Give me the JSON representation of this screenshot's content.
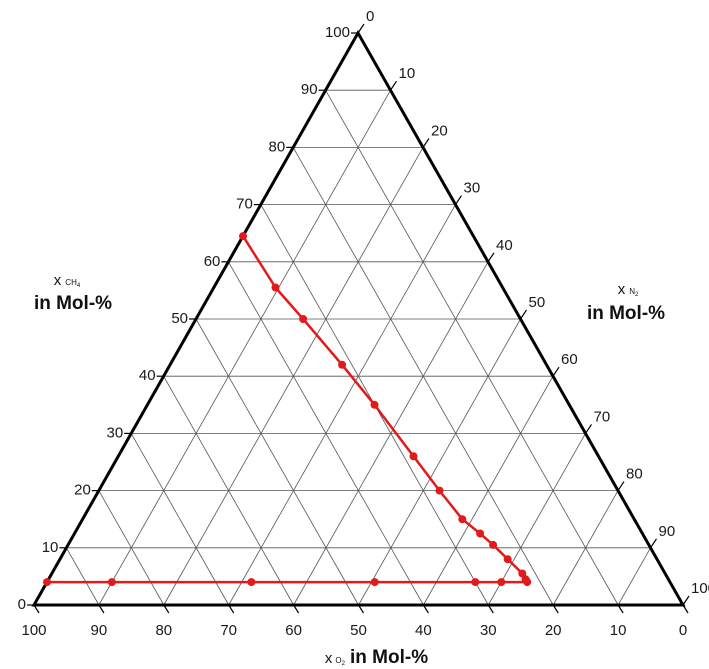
{
  "chart_data": {
    "type": "scatter",
    "subtype": "ternary",
    "axes": {
      "left": {
        "symbol": "x",
        "species": "CH",
        "sub": "4",
        "label": "in Mol-%"
      },
      "right": {
        "symbol": "x",
        "species": "N",
        "sub": "2",
        "label": "in Mol-%"
      },
      "bottom": {
        "symbol": "x",
        "species": "O",
        "sub": "2",
        "label": "in Mol-%"
      }
    },
    "ticks": {
      "left": [
        "0",
        "10",
        "20",
        "30",
        "40",
        "50",
        "60",
        "70",
        "80",
        "90",
        "100"
      ],
      "right": [
        "0",
        "10",
        "20",
        "30",
        "40",
        "50",
        "60",
        "70",
        "80",
        "90",
        "100"
      ],
      "bottom": [
        "100",
        "90",
        "80",
        "70",
        "60",
        "50",
        "40",
        "30",
        "20",
        "10",
        "0"
      ]
    },
    "grid": true,
    "series": [
      {
        "color": "#e31a1c",
        "points": [
          {
            "ch4": 64.5,
            "o2": 35.5,
            "n2": 0
          },
          {
            "ch4": 55.5,
            "o2": 35.0,
            "n2": 9.5
          },
          {
            "ch4": 50,
            "o2": 33.5,
            "n2": 16.5
          },
          {
            "ch4": 42,
            "o2": 31.5,
            "n2": 26.5
          },
          {
            "ch4": 35,
            "o2": 30.0,
            "n2": 35
          },
          {
            "ch4": 26,
            "o2": 28.5,
            "n2": 45.5
          },
          {
            "ch4": 20,
            "o2": 27.5,
            "n2": 52.5
          },
          {
            "ch4": 15,
            "o2": 26.5,
            "n2": 58.5
          },
          {
            "ch4": 12.5,
            "o2": 25.0,
            "n2": 62.5
          },
          {
            "ch4": 10.5,
            "o2": 24.0,
            "n2": 65.5
          },
          {
            "ch4": 8,
            "o2": 23.0,
            "n2": 69
          },
          {
            "ch4": 5.5,
            "o2": 22.0,
            "n2": 72.5
          },
          {
            "ch4": 4.5,
            "o2": 22.0,
            "n2": 73.5
          },
          {
            "ch4": 4,
            "o2": 22.0,
            "n2": 74
          },
          {
            "ch4": 4,
            "o2": 26.0,
            "n2": 70
          },
          {
            "ch4": 4,
            "o2": 30.0,
            "n2": 66
          },
          {
            "ch4": 4,
            "o2": 45.5,
            "n2": 50.5
          },
          {
            "ch4": 4,
            "o2": 64.5,
            "n2": 31.5
          },
          {
            "ch4": 4,
            "o2": 86.0,
            "n2": 10
          },
          {
            "ch4": 4,
            "o2": 96.0,
            "n2": 0
          }
        ]
      }
    ]
  }
}
